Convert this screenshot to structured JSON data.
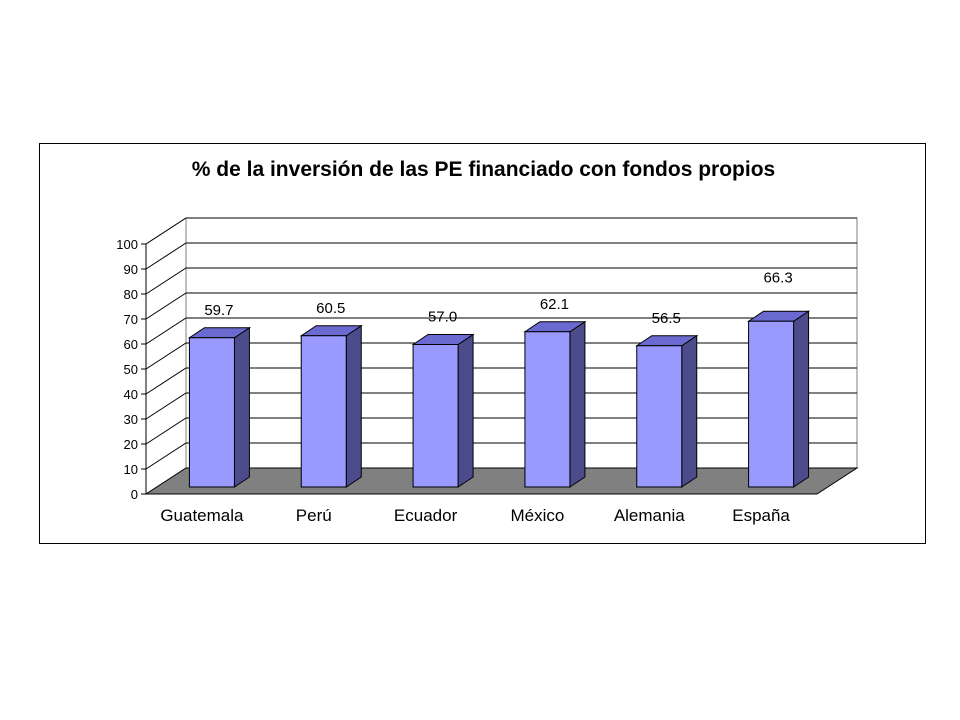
{
  "chart_data": {
    "type": "bar",
    "title": "% de la inversión de las PE financiado con fondos propios",
    "categories": [
      "Guatemala",
      "Perú",
      "Ecuador",
      "México",
      "Alemania",
      "España"
    ],
    "values": [
      59.7,
      60.5,
      57.0,
      62.1,
      56.5,
      66.3
    ],
    "data_labels": [
      "59.7",
      "60.5",
      "57.0",
      "62.1",
      "56.5",
      "66.3"
    ],
    "ylim": [
      0,
      100
    ],
    "yticks": [
      "0",
      "10",
      "20",
      "30",
      "40",
      "50",
      "60",
      "70",
      "80",
      "90",
      "100"
    ],
    "grid": true,
    "three_d": true,
    "legend": "none",
    "xlabel": "",
    "ylabel": "",
    "colors": {
      "bar_front": "#9999ff",
      "bar_side": "#4c4c8c",
      "bar_top": "#6a6ad0",
      "floor": "#808080",
      "wall": "#ffffff",
      "grid": "#000000"
    }
  }
}
